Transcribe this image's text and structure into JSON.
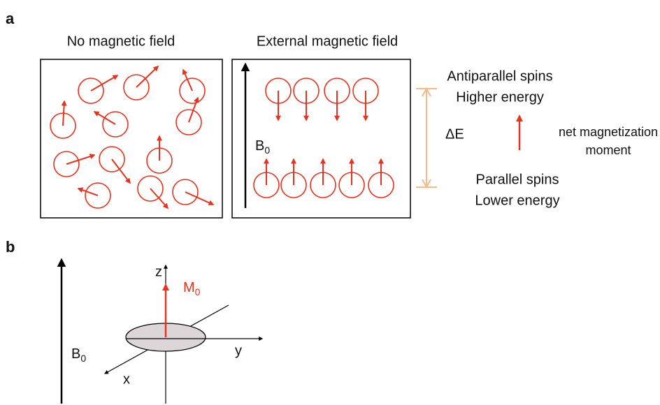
{
  "panel_a": {
    "label": "a",
    "left_title": "No magnetic field",
    "right_title": "External magnetic field",
    "field": {
      "main": "B",
      "sub": "0"
    },
    "delta_e": "ΔE",
    "antiparallel": [
      "Antiparallel spins",
      "Higher energy"
    ],
    "net": [
      "net magnetization",
      "moment"
    ],
    "parallel": [
      "Parallel spins",
      "Lower energy"
    ]
  },
  "panel_b": {
    "label": "b",
    "field": {
      "main": "B",
      "sub": "0"
    },
    "z": "z",
    "moment": {
      "main": "M",
      "sub": "0"
    },
    "y": "y",
    "x": "x"
  }
}
